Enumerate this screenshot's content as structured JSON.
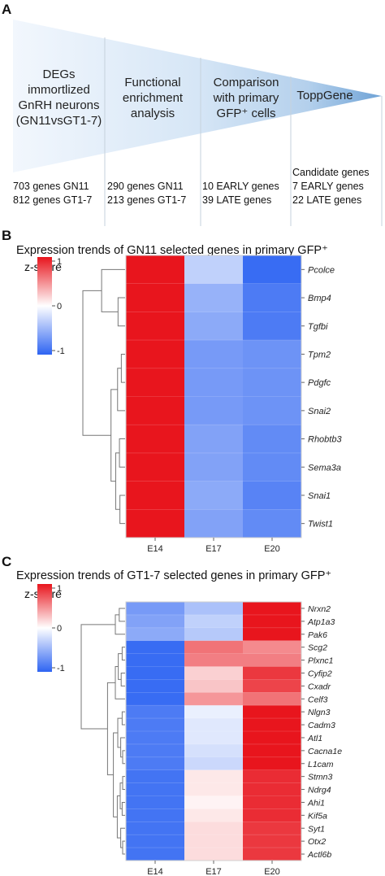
{
  "panel_a": {
    "letter": "A",
    "stages": [
      {
        "lines": [
          "DEGs",
          "immortlized",
          "GnRH neurons",
          "(GN11vsGT1-7)"
        ],
        "stats": [
          "703 genes GN11",
          "812 genes GT1-7"
        ]
      },
      {
        "lines": [
          "Functional",
          "enrichment",
          "analysis"
        ],
        "stats": [
          "290 genes GN11",
          "213 genes GT1-7"
        ]
      },
      {
        "lines": [
          "Comparison",
          "with primary",
          "GFP⁺ cells"
        ],
        "stats": [
          "10 EARLY genes",
          "39 LATE genes"
        ]
      },
      {
        "lines": [
          "ToppGene"
        ],
        "stats": [
          "Candidate genes",
          "7 EARLY genes",
          "22 LATE genes"
        ]
      }
    ]
  },
  "chart_data": [
    {
      "type": "heatmap",
      "panel": "B",
      "title": "Expression trends of GN11 selected genes in primary GFP⁺",
      "legend_title": "z-score",
      "legend_ticks": [
        "1",
        "0",
        "-1"
      ],
      "zlim": [
        -1,
        1
      ],
      "columns": [
        "E14",
        "E17",
        "E20"
      ],
      "rows": [
        "Pcolce",
        "Bmp4",
        "Tgfbi",
        "Tpm2",
        "Pdgfc",
        "Snai2",
        "Rhobtb3",
        "Sema3a",
        "Snai1",
        "Twist1"
      ],
      "values": [
        [
          1.0,
          -0.3,
          -0.95
        ],
        [
          1.0,
          -0.5,
          -0.85
        ],
        [
          1.0,
          -0.55,
          -0.85
        ],
        [
          1.0,
          -0.65,
          -0.7
        ],
        [
          1.0,
          -0.65,
          -0.7
        ],
        [
          1.0,
          -0.65,
          -0.7
        ],
        [
          1.0,
          -0.6,
          -0.75
        ],
        [
          1.0,
          -0.6,
          -0.75
        ],
        [
          1.0,
          -0.55,
          -0.8
        ],
        [
          1.0,
          -0.6,
          -0.75
        ]
      ],
      "colors": {
        "high": "#e8151d",
        "mid": "#ffffff",
        "low": "#2e64f2"
      }
    },
    {
      "type": "heatmap",
      "panel": "C",
      "title": "Expression trends of GT1-7 selected genes in primary GFP⁺",
      "legend_title": "z-score",
      "legend_ticks": [
        "1",
        "0",
        "-1"
      ],
      "zlim": [
        -1,
        1
      ],
      "columns": [
        "E14",
        "E17",
        "E20"
      ],
      "rows": [
        "Nrxn2",
        "Atp1a3",
        "Pak6",
        "Scg2",
        "Plxnc1",
        "Cyfip2",
        "Cxadr",
        "Celf3",
        "Nlgn3",
        "Cadm3",
        "Atl1",
        "Cacna1e",
        "L1cam",
        "Stmn3",
        "Ndrg4",
        "Ahi1",
        "Kif5a",
        "Syt1",
        "Otx2",
        "Actl6b"
      ],
      "values": [
        [
          -0.65,
          -0.4,
          1.0
        ],
        [
          -0.6,
          -0.3,
          1.0
        ],
        [
          -0.55,
          -0.35,
          1.0
        ],
        [
          -0.95,
          0.6,
          0.5
        ],
        [
          -0.95,
          0.55,
          0.55
        ],
        [
          -0.95,
          0.2,
          0.85
        ],
        [
          -0.95,
          0.25,
          0.8
        ],
        [
          -0.95,
          0.45,
          0.6
        ],
        [
          -0.85,
          -0.1,
          1.0
        ],
        [
          -0.85,
          -0.15,
          1.0
        ],
        [
          -0.85,
          -0.15,
          1.0
        ],
        [
          -0.85,
          -0.2,
          1.0
        ],
        [
          -0.85,
          -0.25,
          1.0
        ],
        [
          -0.9,
          0.1,
          0.9
        ],
        [
          -0.9,
          0.1,
          0.9
        ],
        [
          -0.9,
          0.05,
          0.9
        ],
        [
          -0.9,
          0.1,
          0.9
        ],
        [
          -0.9,
          0.15,
          0.85
        ],
        [
          -0.9,
          0.15,
          0.85
        ],
        [
          -0.9,
          0.15,
          0.85
        ]
      ],
      "colors": {
        "high": "#e8151d",
        "mid": "#ffffff",
        "low": "#2e64f2"
      }
    }
  ]
}
